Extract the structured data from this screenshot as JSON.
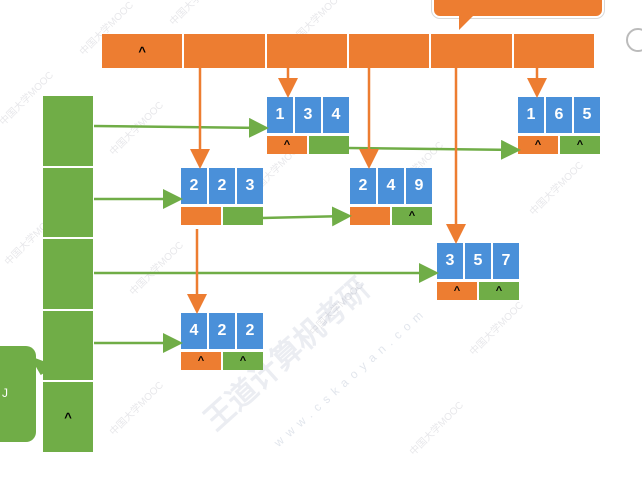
{
  "column_headers": [
    "^",
    "",
    "",
    "",
    "",
    ""
  ],
  "row_headers": [
    "",
    "",
    "",
    "",
    "^"
  ],
  "nodes": [
    {
      "id": "n134",
      "values": [
        "1",
        "3",
        "4"
      ],
      "down": "^",
      "right": ""
    },
    {
      "id": "n165",
      "values": [
        "1",
        "6",
        "5"
      ],
      "down": "^",
      "right": "^"
    },
    {
      "id": "n223",
      "values": [
        "2",
        "2",
        "3"
      ],
      "down": "",
      "right": ""
    },
    {
      "id": "n249",
      "values": [
        "2",
        "4",
        "9"
      ],
      "down": "",
      "right": "^"
    },
    {
      "id": "n357",
      "values": [
        "3",
        "5",
        "7"
      ],
      "down": "^",
      "right": "^"
    },
    {
      "id": "n422",
      "values": [
        "4",
        "2",
        "2"
      ],
      "down": "^",
      "right": "^"
    }
  ],
  "callout_left_text": "J",
  "watermark": {
    "small": "中国大学MOOC",
    "brand": "王道计算机考研",
    "url": "www.cskaoyan.com"
  },
  "colors": {
    "orange": "#ed7d31",
    "green": "#70ad47",
    "blue": "#4a90d9"
  }
}
